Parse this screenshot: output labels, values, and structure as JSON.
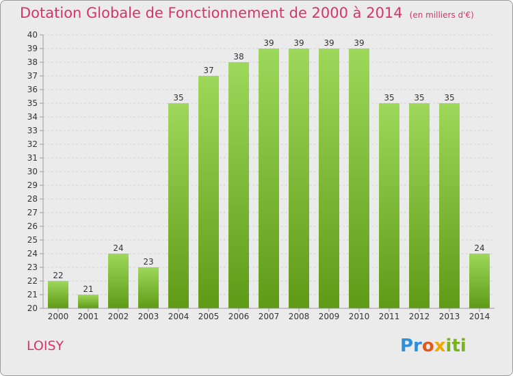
{
  "header": {
    "title": "Dotation Globale de Fonctionnement de 2000 à 2014",
    "unit_note": "(en milliers d'€)"
  },
  "footer": {
    "city": "LOISY",
    "brand": "Proxiti"
  },
  "colors": {
    "title": "#d6336c",
    "bar_light": "#9dd85a",
    "bar_dark": "#5f9a17",
    "background": "#ebebeb"
  },
  "chart_data": {
    "type": "bar",
    "title": "Dotation Globale de Fonctionnement de 2000 à 2014",
    "subtitle": "(en milliers d'€)",
    "categories": [
      "2000",
      "2001",
      "2002",
      "2003",
      "2004",
      "2005",
      "2006",
      "2007",
      "2008",
      "2009",
      "2010",
      "2011",
      "2012",
      "2013",
      "2014"
    ],
    "values": [
      22,
      21,
      24,
      23,
      35,
      37,
      38,
      39,
      39,
      39,
      39,
      35,
      35,
      35,
      24
    ],
    "ylim": [
      20,
      40
    ],
    "yticks": [
      20,
      21,
      22,
      23,
      24,
      25,
      26,
      27,
      28,
      29,
      30,
      31,
      32,
      33,
      34,
      35,
      36,
      37,
      38,
      39,
      40
    ],
    "grid": true
  }
}
